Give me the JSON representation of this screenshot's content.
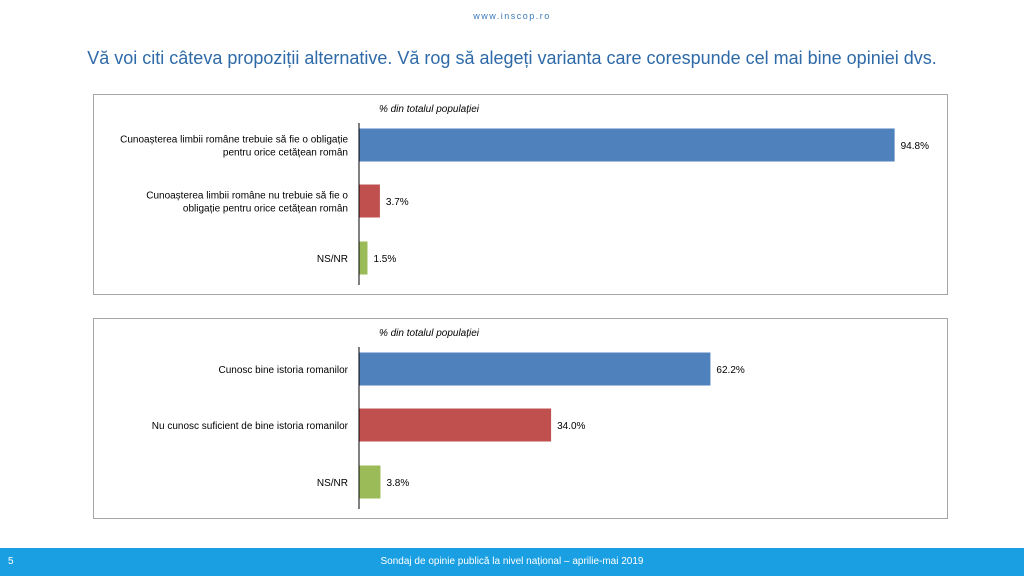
{
  "header": {
    "site_url": "www.inscop.ro",
    "title": "Vă voi citi câteva propoziții alternative. Vă rog să alegeți varianta care corespunde cel mai bine opiniei dvs."
  },
  "chart_data": [
    {
      "type": "bar",
      "orientation": "horizontal",
      "title": "% din totalul populației",
      "xlim": [
        0,
        100
      ],
      "grid": false,
      "categories": [
        [
          "Cunoașterea limbii române trebuie să fie o obligație",
          "pentru orice cetățean român"
        ],
        [
          "Cunoașterea limbii române nu trebuie să fie o",
          "obligație pentru orice cetățean român"
        ],
        [
          "NS/NR"
        ]
      ],
      "values": [
        94.8,
        3.7,
        1.5
      ],
      "value_labels": [
        "94.8%",
        "3.7%",
        "1.5%"
      ],
      "colors": [
        "#4f81bd",
        "#c0504d",
        "#9bbb59"
      ]
    },
    {
      "type": "bar",
      "orientation": "horizontal",
      "title": "% din totalul populației",
      "xlim": [
        0,
        100
      ],
      "grid": false,
      "categories": [
        [
          "Cunosc bine istoria romanilor"
        ],
        [
          "Nu cunosc suficient de bine istoria romanilor"
        ],
        [
          "NS/NR"
        ]
      ],
      "values": [
        62.2,
        34.0,
        3.8
      ],
      "value_labels": [
        "62.2%",
        "34.0%",
        "3.8%"
      ],
      "colors": [
        "#4f81bd",
        "#c0504d",
        "#9bbb59"
      ]
    }
  ],
  "footer": {
    "slide_number": "5",
    "text": "Sondaj de opinie publică la nivel național – aprilie-mai 2019"
  }
}
